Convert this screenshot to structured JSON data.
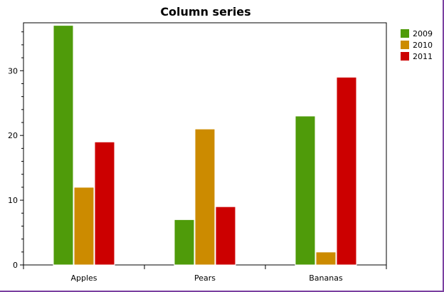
{
  "chart_data": {
    "type": "bar",
    "title": "Column series",
    "categories": [
      "Apples",
      "Pears",
      "Bananas"
    ],
    "series": [
      {
        "name": "2009",
        "color": "#4f9b0a",
        "values": [
          37,
          7,
          23
        ]
      },
      {
        "name": "2010",
        "color": "#cc8b00",
        "values": [
          12,
          21,
          2
        ]
      },
      {
        "name": "2011",
        "color": "#cc0000",
        "values": [
          19,
          9,
          29
        ]
      }
    ],
    "y_ticks": [
      "0",
      "10",
      "20",
      "30"
    ],
    "ylim": [
      0,
      37.4
    ],
    "grid": false,
    "legend": "top-right"
  }
}
